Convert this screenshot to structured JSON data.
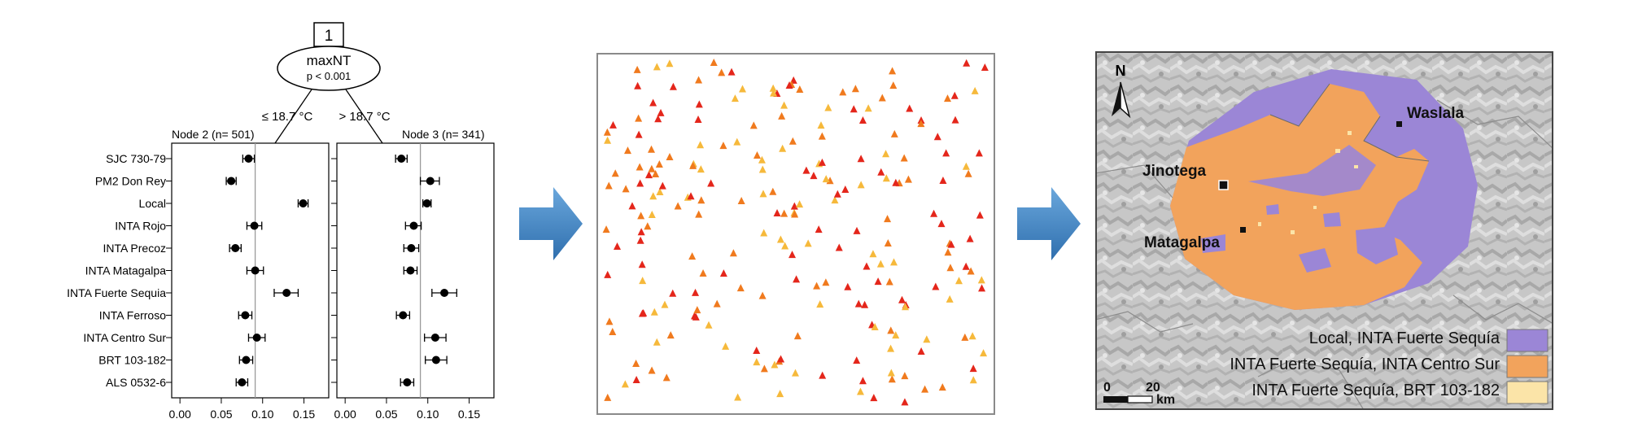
{
  "tree": {
    "node_id": "1",
    "split_var": "maxNT",
    "pvalue": "p < 0.001",
    "left_edge": "≤ 18.7 °C",
    "right_edge": "> 18.7 °C",
    "left_node": "Node 2 (n= 501)",
    "right_node": "Node 3 (n= 341)"
  },
  "chart_data": {
    "type": "scatter",
    "varieties": [
      "SJC 730-79",
      "PM2 Don Rey",
      "Local",
      "INTA Rojo",
      "INTA Precoz",
      "INTA Matagalpa",
      "INTA Fuerte Sequia",
      "INTA Ferroso",
      "INTA Centro Sur",
      "BRT 103-182",
      "ALS 0532-6"
    ],
    "x_ticks": [
      "0.00",
      "0.05",
      "0.10",
      "0.15"
    ],
    "xlim": [
      -0.01,
      0.18
    ],
    "reference_line": 0.091,
    "panels": [
      {
        "name": "Node 2 (n= 501)",
        "estimate": [
          0.083,
          0.062,
          0.149,
          0.09,
          0.067,
          0.091,
          0.129,
          0.079,
          0.093,
          0.08,
          0.075
        ],
        "lower": [
          0.076,
          0.056,
          0.143,
          0.081,
          0.06,
          0.081,
          0.114,
          0.071,
          0.083,
          0.072,
          0.068
        ],
        "upper": [
          0.09,
          0.068,
          0.155,
          0.099,
          0.074,
          0.101,
          0.143,
          0.087,
          0.103,
          0.088,
          0.082
        ]
      },
      {
        "name": "Node 3 (n= 341)",
        "estimate": [
          0.068,
          0.103,
          0.099,
          0.083,
          0.08,
          0.079,
          0.12,
          0.07,
          0.109,
          0.11,
          0.075
        ],
        "lower": [
          0.061,
          0.091,
          0.094,
          0.073,
          0.071,
          0.071,
          0.105,
          0.062,
          0.096,
          0.097,
          0.067
        ],
        "upper": [
          0.075,
          0.114,
          0.104,
          0.092,
          0.089,
          0.087,
          0.135,
          0.078,
          0.122,
          0.123,
          0.083
        ]
      }
    ]
  },
  "map": {
    "north": "N",
    "places": [
      {
        "name": "Waslala"
      },
      {
        "name": "Jinotega"
      },
      {
        "name": "Matagalpa"
      }
    ],
    "legend": [
      {
        "label": "Local, INTA Fuerte Sequía",
        "color": "#9b86d6"
      },
      {
        "label": "INTA Fuerte Sequía, INTA Centro Sur",
        "color": "#f2a35c"
      },
      {
        "label": "INTA Fuerte Sequía, BRT 103-182",
        "color": "#fbe4a8"
      }
    ],
    "scale": {
      "start": "0",
      "end": "20",
      "unit": "km"
    }
  },
  "colors": {
    "arrow": "#3f86c6",
    "tri_red": "#e4261b",
    "tri_orange": "#f07a1e",
    "tri_yellow": "#f6b93b"
  }
}
